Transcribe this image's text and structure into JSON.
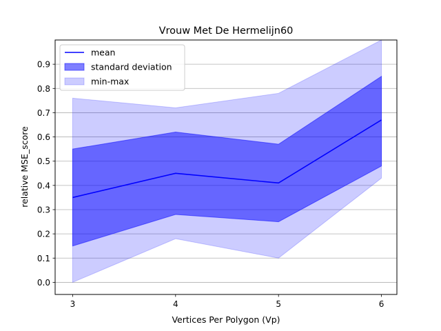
{
  "chart_data": {
    "type": "area",
    "title": "Vrouw Met De Hermelijn60",
    "xlabel": "Vertices Per Polygon (Vp)",
    "ylabel": "relative MSE_score",
    "x": [
      3,
      4,
      5,
      6
    ],
    "xticks": [
      "3",
      "4",
      "5",
      "6"
    ],
    "yticks": [
      "0.0",
      "0.1",
      "0.2",
      "0.3",
      "0.4",
      "0.5",
      "0.6",
      "0.7",
      "0.8",
      "0.9"
    ],
    "xlim": [
      2.83,
      6.15
    ],
    "ylim": [
      -0.05,
      1.0
    ],
    "grid": "horizontal",
    "legend_position": "top-left",
    "series": [
      {
        "name": "mean",
        "kind": "line",
        "color": "#0000ff",
        "values": [
          0.35,
          0.45,
          0.41,
          0.67
        ]
      },
      {
        "name": "standard deviation",
        "kind": "band",
        "color": "#0000ff",
        "opacity": 0.5,
        "lower": [
          0.15,
          0.28,
          0.25,
          0.48
        ],
        "upper": [
          0.55,
          0.62,
          0.57,
          0.85
        ]
      },
      {
        "name": "min-max",
        "kind": "band",
        "color": "#0000ff",
        "opacity": 0.2,
        "lower": [
          0.0,
          0.18,
          0.1,
          0.43
        ],
        "upper": [
          0.76,
          0.72,
          0.78,
          1.0
        ]
      }
    ]
  }
}
